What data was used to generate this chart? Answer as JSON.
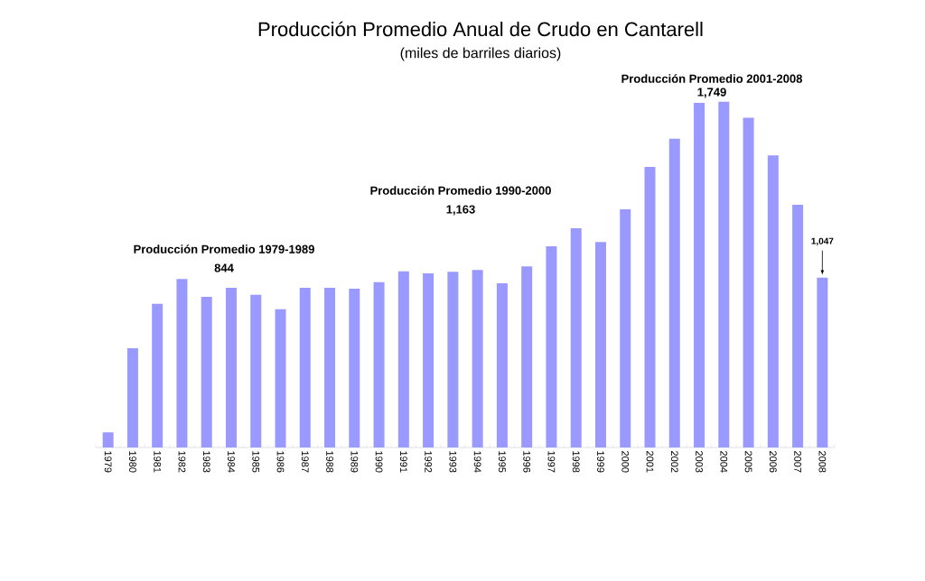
{
  "chart_data": {
    "type": "bar",
    "title": "Producción Promedio Anual de Crudo en Cantarell",
    "subtitle": "(miles de barriles diarios)",
    "categories": [
      "1979",
      "1980",
      "1981",
      "1982",
      "1983",
      "1984",
      "1985",
      "1986",
      "1987",
      "1988",
      "1989",
      "1990",
      "1991",
      "1992",
      "1993",
      "1994",
      "1995",
      "1996",
      "1997",
      "1998",
      "1999",
      "2000",
      "2001",
      "2002",
      "2003",
      "2004",
      "2005",
      "2006",
      "2007",
      "2008"
    ],
    "values": [
      93,
      612,
      886,
      1038,
      929,
      984,
      941,
      852,
      984,
      984,
      979,
      1019,
      1086,
      1073,
      1083,
      1094,
      1012,
      1116,
      1240,
      1351,
      1266,
      1468,
      1729,
      1903,
      2124,
      2131,
      2033,
      1800,
      1496,
      1047
    ],
    "value_labels": [
      null,
      null,
      null,
      null,
      null,
      null,
      null,
      null,
      null,
      null,
      null,
      null,
      null,
      null,
      null,
      null,
      null,
      null,
      null,
      null,
      null,
      null,
      null,
      null,
      null,
      null,
      null,
      null,
      null,
      "1,047"
    ],
    "color": "#9999ff",
    "tick_labels": "x",
    "annotations": [
      "Producción Promedio 1979-1989",
      "844",
      "Producción Promedio 1990-2000",
      "1,163",
      "Producción Promedio 2001-2008",
      "1,749"
    ]
  }
}
